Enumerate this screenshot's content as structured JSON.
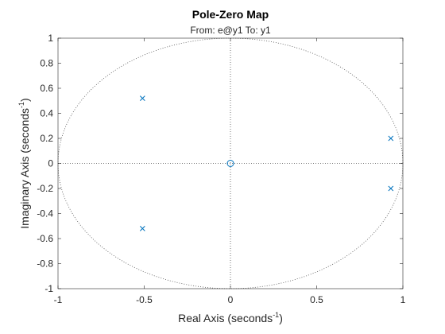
{
  "chart_data": {
    "type": "scatter",
    "title": "Pole-Zero Map",
    "subtitle": "From: e@y1  To: y1",
    "xlabel": {
      "text": "Real  Axis  (seconds",
      "sup": "-1",
      "close": ")"
    },
    "ylabel": {
      "text": "Imaginary  Axis  (seconds",
      "sup": "-1",
      "close": ")"
    },
    "xlim": [
      -1,
      1
    ],
    "ylim": [
      -1,
      1
    ],
    "xticks": [
      -1,
      -0.5,
      0,
      0.5,
      1
    ],
    "xtick_labels": [
      "-1",
      "-0.5",
      "0",
      "0.5",
      "1"
    ],
    "yticks": [
      -1,
      -0.8,
      -0.6,
      -0.4,
      -0.2,
      0,
      0.2,
      0.4,
      0.6,
      0.8,
      1
    ],
    "ytick_labels": [
      "-1",
      "-0.8",
      "-0.6",
      "-0.4",
      "-0.2",
      "0",
      "0.2",
      "0.4",
      "0.6",
      "0.8",
      "1"
    ],
    "unit_circle": true,
    "crosshair_at_origin": true,
    "marker_color": "#0072bd",
    "poles": [
      {
        "x": -0.51,
        "y": 0.52
      },
      {
        "x": -0.51,
        "y": -0.52
      },
      {
        "x": 0.93,
        "y": 0.2
      },
      {
        "x": 0.93,
        "y": -0.2
      }
    ],
    "zeros": [
      {
        "x": 0,
        "y": 0
      }
    ]
  }
}
